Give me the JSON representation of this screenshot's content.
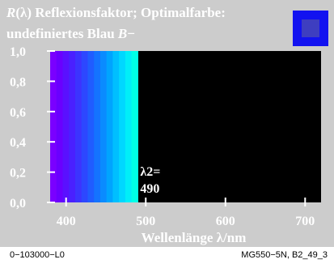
{
  "title": {
    "symbol": "R",
    "lambda_paren": "(λ)",
    "line1_rest": " Reflexionsfaktor; Optimalfarbe:",
    "line2_text": "undefiniertes Blau ",
    "line2_symbol": "B",
    "line2_suffix": "−"
  },
  "chart_data": {
    "type": "area",
    "xlabel": "Wellenlänge λ/nm",
    "xlim": [
      380,
      720
    ],
    "ylim": [
      0,
      1
    ],
    "x_ticks": [
      400,
      500,
      600,
      700
    ],
    "x_tick_labels": [
      "400",
      "500",
      "600",
      "700"
    ],
    "y_ticks": [
      0,
      0.2,
      0.4,
      0.6,
      0.8,
      1.0
    ],
    "y_tick_labels": [
      "0,0",
      "0,2",
      "0,4",
      "0,6",
      "0,8",
      "1,0"
    ],
    "series": [
      {
        "x": [
          380,
          490,
          490,
          720
        ],
        "y": [
          1,
          1,
          0,
          0
        ]
      }
    ],
    "annotation": {
      "line1": "λ2=",
      "line2": "490",
      "x": 490
    },
    "colors": {
      "background": "#cccccc",
      "plot_background": "#000000",
      "spectrum": [
        "#7a00ff",
        "#6a00ff",
        "#5a10ff",
        "#4a20ff",
        "#3c33ff",
        "#2d47ff",
        "#205cff",
        "#1473ff",
        "#0a8bff",
        "#00a4ff",
        "#00bfff",
        "#00d7ff",
        "#00eef8",
        "#00ffe6"
      ],
      "swatch_outer": "#1212f0",
      "swatch_inner": "#3e3ec0"
    }
  },
  "footer": {
    "left": "0−103000−L0",
    "right": "MG550−5N, B2_49_3"
  }
}
